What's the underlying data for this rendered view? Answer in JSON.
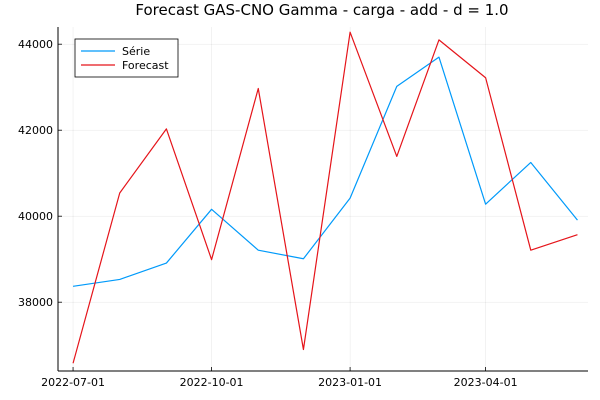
{
  "chart_data": {
    "type": "line",
    "title": "Forecast GAS-CNO Gamma - carga - add - d = 1.0",
    "xlabel": "",
    "ylabel": "",
    "x": [
      "2022-07-01",
      "2022-08-01",
      "2022-09-01",
      "2022-10-01",
      "2022-11-01",
      "2022-12-01",
      "2023-01-01",
      "2023-02-01",
      "2023-03-01",
      "2023-04-01",
      "2023-05-01",
      "2023-06-01"
    ],
    "xlim": [
      "2022-06-21",
      "2023-06-08"
    ],
    "ylim": [
      36400,
      44400
    ],
    "x_ticks": [
      "2022-07-01",
      "2022-10-01",
      "2023-01-01",
      "2023-04-01"
    ],
    "y_ticks": [
      38000,
      40000,
      42000,
      44000
    ],
    "grid": true,
    "legend_position": "top-left",
    "series": [
      {
        "name": "Série",
        "color": "#009AFA",
        "values": [
          38370,
          38530,
          38910,
          40160,
          39210,
          39010,
          40420,
          43020,
          43700,
          40280,
          41250,
          39910
        ]
      },
      {
        "name": "Forecast",
        "color": "#E5141A",
        "values": [
          36580,
          40540,
          42030,
          38990,
          42970,
          36900,
          44280,
          41390,
          44100,
          43220,
          39210,
          39570
        ]
      }
    ]
  }
}
